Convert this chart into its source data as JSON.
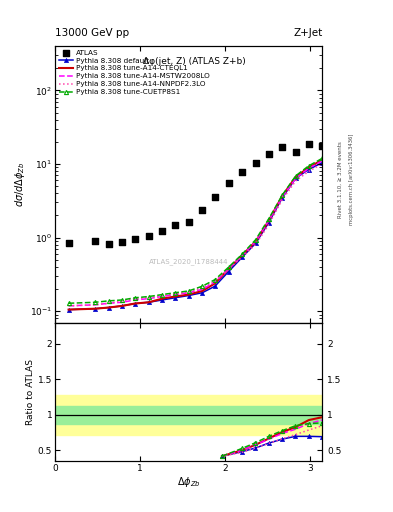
{
  "title_left": "13000 GeV pp",
  "title_right": "Z+Jet",
  "subplot_title": "Δφ(jet, Z) (ATLAS Z+b)",
  "watermark": "ATLAS_2020_I1788444",
  "right_label1": "Rivet 3.1.10, ≥ 3.2M events",
  "right_label2": "mcplots.cern.ch [arXiv:1306.3436]",
  "ylabel_main": "dσ/dΔφ₁₋",
  "xlabel": "Δφ₁₋",
  "ylabel_ratio": "Ratio to ATLAS",
  "xlim": [
    0,
    3.14159
  ],
  "ylim_main": [
    0.07,
    400
  ],
  "ylim_ratio": [
    0.35,
    2.3
  ],
  "atlas_x": [
    0.16,
    0.47,
    0.63,
    0.79,
    0.94,
    1.1,
    1.26,
    1.41,
    1.57,
    1.73,
    1.88,
    2.04,
    2.2,
    2.36,
    2.51,
    2.67,
    2.83,
    2.98,
    3.14
  ],
  "atlas_y": [
    0.85,
    0.9,
    0.83,
    0.88,
    0.97,
    1.05,
    1.22,
    1.48,
    1.65,
    2.35,
    3.6,
    5.6,
    7.8,
    10.2,
    13.5,
    17.0,
    14.5,
    18.5,
    17.5
  ],
  "mc_x": [
    0.16,
    0.47,
    0.63,
    0.79,
    0.94,
    1.1,
    1.26,
    1.41,
    1.57,
    1.73,
    1.88,
    2.04,
    2.2,
    2.36,
    2.51,
    2.67,
    2.83,
    2.98,
    3.14
  ],
  "default_y": [
    0.105,
    0.108,
    0.112,
    0.118,
    0.127,
    0.132,
    0.142,
    0.152,
    0.163,
    0.178,
    0.218,
    0.345,
    0.54,
    0.84,
    1.58,
    3.45,
    6.4,
    8.4,
    10.4
  ],
  "cteql1_y": [
    0.105,
    0.108,
    0.112,
    0.118,
    0.127,
    0.132,
    0.148,
    0.158,
    0.168,
    0.188,
    0.238,
    0.375,
    0.575,
    0.89,
    1.68,
    3.65,
    6.7,
    8.9,
    11.4
  ],
  "mstw_y": [
    0.118,
    0.122,
    0.128,
    0.132,
    0.142,
    0.148,
    0.158,
    0.168,
    0.178,
    0.198,
    0.248,
    0.375,
    0.575,
    0.89,
    1.68,
    3.55,
    6.4,
    8.7,
    11.0
  ],
  "nnpdf_y": [
    0.118,
    0.122,
    0.128,
    0.138,
    0.148,
    0.152,
    0.162,
    0.172,
    0.182,
    0.208,
    0.258,
    0.375,
    0.545,
    0.81,
    1.48,
    3.25,
    5.9,
    7.9,
    10.1
  ],
  "cuetp_y": [
    0.128,
    0.132,
    0.138,
    0.142,
    0.152,
    0.158,
    0.168,
    0.178,
    0.188,
    0.218,
    0.268,
    0.395,
    0.595,
    0.94,
    1.78,
    3.75,
    6.9,
    9.4,
    11.9
  ],
  "ratio_x": [
    1.963,
    2.199,
    2.356,
    2.513,
    2.67,
    2.827,
    2.984,
    3.14159
  ],
  "ratio_default": [
    0.415,
    0.48,
    0.53,
    0.6,
    0.655,
    0.695,
    0.695,
    0.69
  ],
  "ratio_cteql1": [
    0.415,
    0.5,
    0.575,
    0.665,
    0.755,
    0.825,
    0.925,
    0.965
  ],
  "ratio_mstw": [
    0.415,
    0.5,
    0.575,
    0.655,
    0.735,
    0.795,
    0.875,
    0.925
  ],
  "ratio_nnpdf": [
    0.415,
    0.47,
    0.53,
    0.595,
    0.66,
    0.72,
    0.785,
    0.845
  ],
  "ratio_cuetp": [
    0.415,
    0.525,
    0.605,
    0.695,
    0.775,
    0.845,
    0.875,
    0.885
  ],
  "band_yellow_lo": 0.72,
  "band_yellow_hi": 1.28,
  "band_green_lo": 0.87,
  "band_green_hi": 1.13,
  "color_default": "#0000cc",
  "color_cteql1": "#cc0000",
  "color_mstw": "#ff00ff",
  "color_nnpdf": "#ff44aa",
  "color_cuetp": "#00aa00",
  "color_atlas": "#000000"
}
